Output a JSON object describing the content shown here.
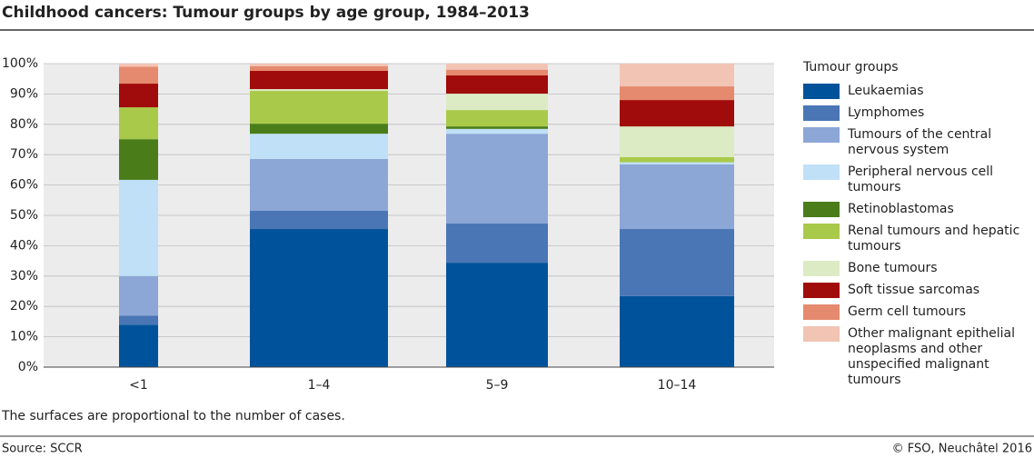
{
  "chart_data": {
    "type": "stacked_bar_100",
    "title": "Childhood cancers: Tumour groups by age group, 1984–2013",
    "categories": [
      "<1",
      "1–4",
      "5–9",
      "10–14"
    ],
    "series": [
      {
        "name": "Leukaemias",
        "color": "#00539b",
        "values": [
          14,
          45.5,
          34.4,
          23.4
        ]
      },
      {
        "name": "Lymphomes",
        "color": "#4a76b5",
        "values": [
          3,
          6,
          12.9,
          22.1
        ]
      },
      {
        "name": "Tumours of the central nervous system",
        "color": "#8ca6d6",
        "values": [
          13,
          17.1,
          29.6,
          21.3
        ]
      },
      {
        "name": "Peripheral nervous cell tumours",
        "color": "#bfe0f6",
        "values": [
          31.7,
          8.3,
          1.6,
          0.7
        ]
      },
      {
        "name": "Retinoblastomas",
        "color": "#4a7d1a",
        "values": [
          13.4,
          3.3,
          0.8,
          0
        ]
      },
      {
        "name": "Renal tumours and hepatic tumours",
        "color": "#a9c94a",
        "values": [
          10.5,
          10.8,
          5.4,
          1.7
        ]
      },
      {
        "name": "Bone tumours",
        "color": "#dcebc4",
        "values": [
          0,
          0.6,
          5.4,
          10.1
        ]
      },
      {
        "name": "Soft tissue sarcomas",
        "color": "#a00b0b",
        "values": [
          7.8,
          6,
          6,
          8.7
        ]
      },
      {
        "name": "Germ cell tumours",
        "color": "#e58a6e",
        "values": [
          5.6,
          1.5,
          1.9,
          4.5
        ]
      },
      {
        "name": "Other malignant epithelial neoplasms and other unspecified malignant tumours",
        "color": "#f2c4b4",
        "values": [
          1,
          0.9,
          2,
          7.5
        ]
      }
    ],
    "legend_title": "Tumour groups",
    "ylim": [
      0,
      100
    ],
    "yticks": [
      {
        "value": 0,
        "label": "0%"
      },
      {
        "value": 10,
        "label": "10%"
      },
      {
        "value": 20,
        "label": "20%"
      },
      {
        "value": 30,
        "label": "30%"
      },
      {
        "value": 40,
        "label": "40%"
      },
      {
        "value": 50,
        "label": "50%"
      },
      {
        "value": 60,
        "label": "60%"
      },
      {
        "value": 70,
        "label": "70%"
      },
      {
        "value": 80,
        "label": "80%"
      },
      {
        "value": 90,
        "label": "90%"
      },
      {
        "value": 100,
        "label": "100%"
      }
    ],
    "grid": true,
    "note": "The surfaces are proportional to the number of cases.",
    "source": "Source: SCCR",
    "credit": "© FSO, Neuchâtel 2016"
  }
}
